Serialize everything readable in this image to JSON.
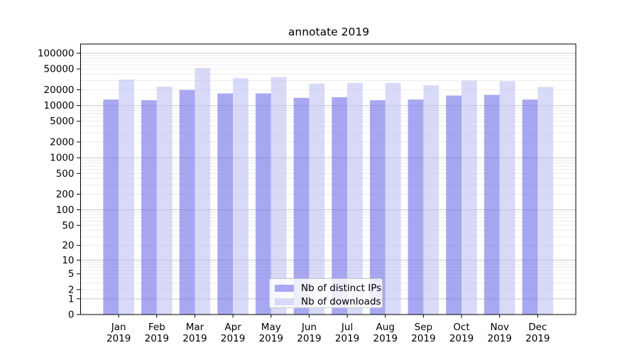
{
  "figure": {
    "title": "annotate 2019"
  },
  "chart_data": {
    "type": "bar",
    "title": "annotate 2019",
    "categories": [
      "Jan 2019",
      "Feb 2019",
      "Mar 2019",
      "Apr 2019",
      "May 2019",
      "Jun 2019",
      "Jul 2019",
      "Aug 2019",
      "Sep 2019",
      "Oct 2019",
      "Nov 2019",
      "Dec 2019"
    ],
    "series": [
      {
        "name": "Nb of distinct IPs",
        "color": "#a8a8f2",
        "bar_fill": "rgba(110,110,233,0.6)",
        "values": [
          13000,
          12600,
          19800,
          17000,
          17000,
          14000,
          14400,
          12600,
          13000,
          15500,
          16000,
          13000
        ]
      },
      {
        "name": "Nb of downloads",
        "color": "#d9d9f8",
        "bar_fill": "rgba(192,192,243,0.6)",
        "values": [
          31500,
          23000,
          52000,
          33300,
          35000,
          26200,
          27000,
          27000,
          24300,
          30000,
          29000,
          22600
        ]
      }
    ],
    "xlabel": "",
    "ylabel": "",
    "yscale": "log1p",
    "ylim": [
      0,
      150000
    ],
    "ytick_labels": [
      100000,
      50000,
      20000,
      10000,
      5000,
      2000,
      1000,
      500,
      200,
      100,
      50,
      20,
      10,
      5,
      2,
      1,
      0
    ],
    "grid": "major+minor horizontal",
    "legend_position": "lower center",
    "colors": {
      "major_grid": "#c9c9c9",
      "minor_grid": "#ececec",
      "spine": "#000000",
      "tick_label": "#000000"
    }
  }
}
